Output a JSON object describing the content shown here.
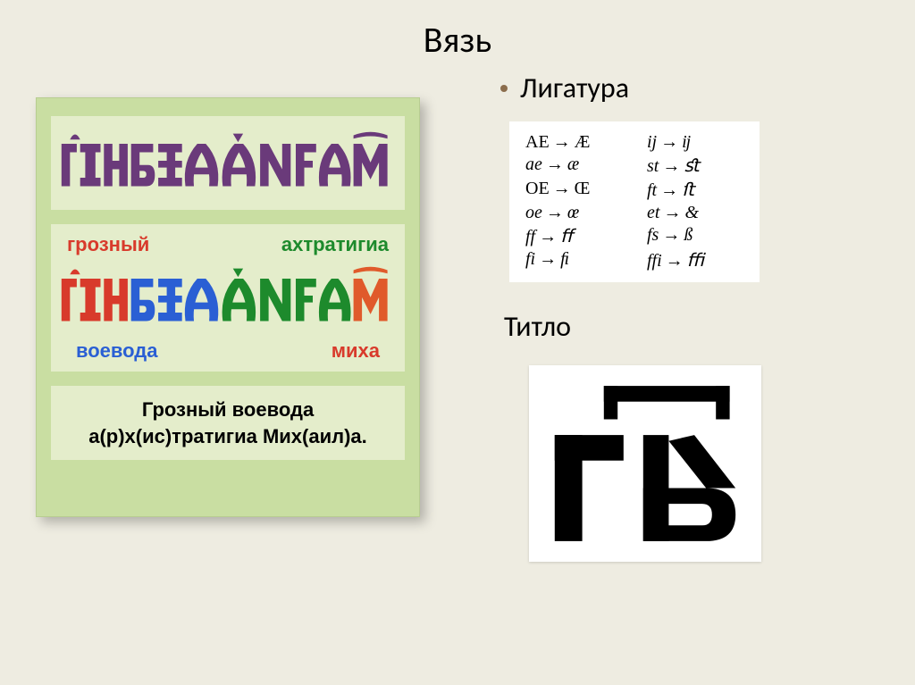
{
  "title": "Вязь",
  "bullet": {
    "label": "Лигатура",
    "dot_color": "#8b6d4c"
  },
  "titlo_heading": "Титло",
  "green_card": {
    "bg": "#c9dea2",
    "band_bg": "#e4edcb",
    "vyaz_color": "#6a3a7a",
    "labels": {
      "top_left": {
        "text": "грозный",
        "color": "#d83a2b"
      },
      "top_right": {
        "text": "ахтратигиа",
        "color": "#1d8a2c"
      },
      "bottom_left": {
        "text": "воевода",
        "color": "#2a5fd4"
      },
      "bottom_right": {
        "text": "миха",
        "color": "#d83a2b"
      }
    },
    "segment_colors": [
      "#d83a2b",
      "#2a5fd4",
      "#1d8a2c",
      "#e05a2b"
    ],
    "decoded_line1": "Грозный воевода",
    "decoded_line2": "а(р)х(ис)тратигиа Мих(аил)а."
  },
  "ligatures": {
    "rows": [
      {
        "l_from": "AE",
        "l_to": "Æ",
        "r_from": "ij",
        "r_to": "ĳ",
        "l_up": true
      },
      {
        "l_from": "ae",
        "l_to": "æ",
        "r_from": "st",
        "r_to": "ﬆ"
      },
      {
        "l_from": "OE",
        "l_to": "Œ",
        "r_from": "ft",
        "r_to": "ﬅ",
        "l_up": true
      },
      {
        "l_from": "oe",
        "l_to": "œ",
        "r_from": "et",
        "r_to": "&"
      },
      {
        "l_from": "ff",
        "l_to": "ﬀ",
        "r_from": "fs",
        "r_to": "ß"
      },
      {
        "l_from": "fi",
        "l_to": "ﬁ",
        "r_from": "ffi",
        "r_to": "ﬃ"
      }
    ]
  },
  "titlo_glyph": {
    "bar_color": "#000000",
    "letters_color": "#000000"
  }
}
